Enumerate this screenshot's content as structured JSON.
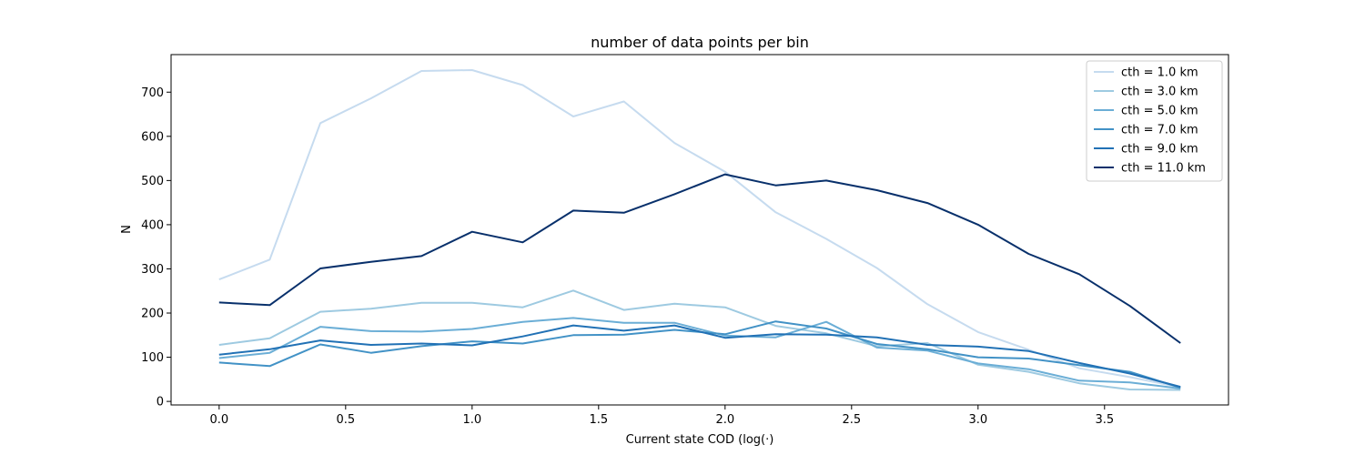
{
  "chart_data": {
    "type": "line",
    "title": "number of data points per bin",
    "xlabel": "Current state COD (log(·)",
    "ylabel": "N",
    "xlim": [
      -0.19,
      3.99
    ],
    "ylim": [
      -8,
      785
    ],
    "xticks": [
      0.0,
      0.5,
      1.0,
      1.5,
      2.0,
      2.5,
      3.0,
      3.5
    ],
    "xtick_labels": [
      "0.0",
      "0.5",
      "1.0",
      "1.5",
      "2.0",
      "2.5",
      "3.0",
      "3.5"
    ],
    "yticks": [
      0,
      100,
      200,
      300,
      400,
      500,
      600,
      700
    ],
    "ytick_labels": [
      "0",
      "100",
      "200",
      "300",
      "400",
      "500",
      "600",
      "700"
    ],
    "grid": false,
    "legend_position": "top-right",
    "x": [
      0.0,
      0.2,
      0.4,
      0.6,
      0.8,
      1.0,
      1.2,
      1.4,
      1.6,
      1.8,
      2.0,
      2.2,
      2.4,
      2.6,
      2.8,
      3.0,
      3.2,
      3.4,
      3.6,
      3.8
    ],
    "series": [
      {
        "name": "cth = 1.0 km",
        "color": "#c6dbef",
        "values": [
          276,
          321,
          630,
          686,
          748,
          750,
          716,
          645,
          679,
          585,
          520,
          428,
          368,
          302,
          220,
          157,
          117,
          75,
          55,
          32
        ]
      },
      {
        "name": "cth = 3.0 km",
        "color": "#9ecae1",
        "values": [
          128,
          143,
          203,
          210,
          223,
          223,
          213,
          251,
          207,
          221,
          213,
          171,
          154,
          125,
          132,
          83,
          67,
          41,
          27,
          26
        ]
      },
      {
        "name": "cth = 5.0 km",
        "color": "#6baed6",
        "values": [
          98,
          110,
          169,
          159,
          158,
          164,
          180,
          189,
          178,
          178,
          149,
          145,
          180,
          122,
          115,
          86,
          73,
          47,
          43,
          29
        ]
      },
      {
        "name": "cth = 7.0 km",
        "color": "#4292c6",
        "values": [
          88,
          80,
          129,
          110,
          125,
          136,
          131,
          150,
          151,
          162,
          152,
          181,
          165,
          130,
          118,
          100,
          97,
          82,
          67,
          31
        ]
      },
      {
        "name": "cth = 9.0 km",
        "color": "#2171b5",
        "values": [
          106,
          118,
          138,
          128,
          131,
          127,
          147,
          172,
          160,
          172,
          144,
          152,
          151,
          145,
          128,
          124,
          114,
          87,
          63,
          33
        ]
      },
      {
        "name": "cth = 11.0 km",
        "color": "#08306b",
        "values": [
          224,
          218,
          301,
          316,
          329,
          384,
          360,
          432,
          427,
          469,
          514,
          489,
          500,
          478,
          449,
          400,
          334,
          288,
          216,
          132
        ]
      }
    ]
  }
}
